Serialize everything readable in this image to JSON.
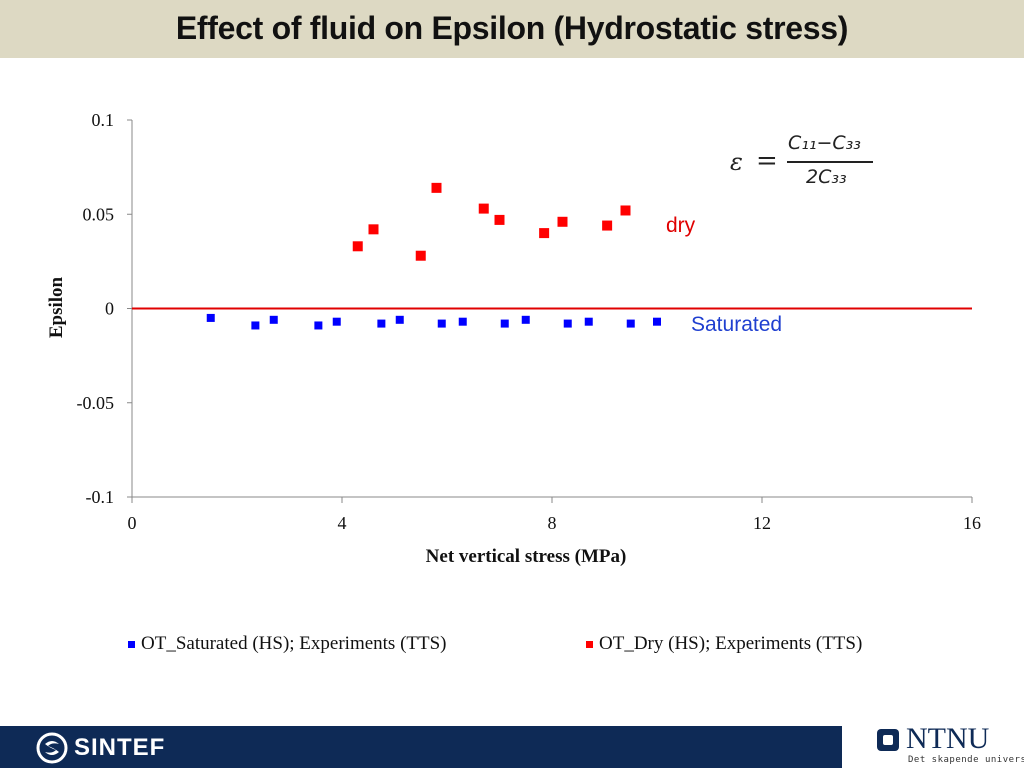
{
  "header": {
    "title": "Effect of fluid on Epsilon (Hydrostatic stress)"
  },
  "formula": {
    "lhs": "ε",
    "eq": "=",
    "numerator": "C₁₁−C₃₃",
    "denominator": "2C₃₃"
  },
  "colors": {
    "saturated": "#0000ff",
    "dry": "#ff0000",
    "zero_line": "#e00000",
    "title_bar": "#ddd9c3",
    "footer": "#0e2a56"
  },
  "chart_data": {
    "type": "scatter",
    "title": "",
    "xlabel": "Net vertical stress (MPa)",
    "ylabel": "Epsilon",
    "xlim": [
      0,
      16
    ],
    "ylim": [
      -0.1,
      0.1
    ],
    "xticks": [
      0,
      4,
      8,
      12,
      16
    ],
    "yticks": [
      -0.1,
      -0.05,
      0,
      0.05,
      0.1
    ],
    "ytick_labels": [
      "-0.1",
      "-0.05",
      "0",
      "0.05",
      "0.1"
    ],
    "grid": false,
    "legend_position": "bottom",
    "reference_line": {
      "y": 0,
      "color": "#e00000"
    },
    "series": [
      {
        "name": "OT_Saturated (HS); Experiments (TTS)",
        "color": "#0000ff",
        "x": [
          1.5,
          2.35,
          2.7,
          3.55,
          3.9,
          4.75,
          5.1,
          5.9,
          6.3,
          7.1,
          7.5,
          8.3,
          8.7,
          9.5,
          10.0
        ],
        "y": [
          -0.005,
          -0.009,
          -0.006,
          -0.009,
          -0.007,
          -0.008,
          -0.006,
          -0.008,
          -0.007,
          -0.008,
          -0.006,
          -0.008,
          -0.007,
          -0.008,
          -0.007
        ]
      },
      {
        "name": "OT_Dry (HS); Experiments (TTS)",
        "color": "#ff0000",
        "x": [
          4.3,
          4.6,
          5.5,
          5.8,
          6.7,
          7.0,
          7.85,
          8.2,
          9.05,
          9.4
        ],
        "y": [
          0.033,
          0.042,
          0.028,
          0.064,
          0.053,
          0.047,
          0.04,
          0.046,
          0.044,
          0.052
        ]
      }
    ],
    "annotations": [
      {
        "text": "dry",
        "color": "#e00000"
      },
      {
        "text": "Saturated",
        "color": "#1f3fd0"
      }
    ]
  },
  "footer": {
    "left_logo": "SINTEF",
    "right_logo": "NTNU",
    "right_tagline": "Det skapende universitet"
  }
}
